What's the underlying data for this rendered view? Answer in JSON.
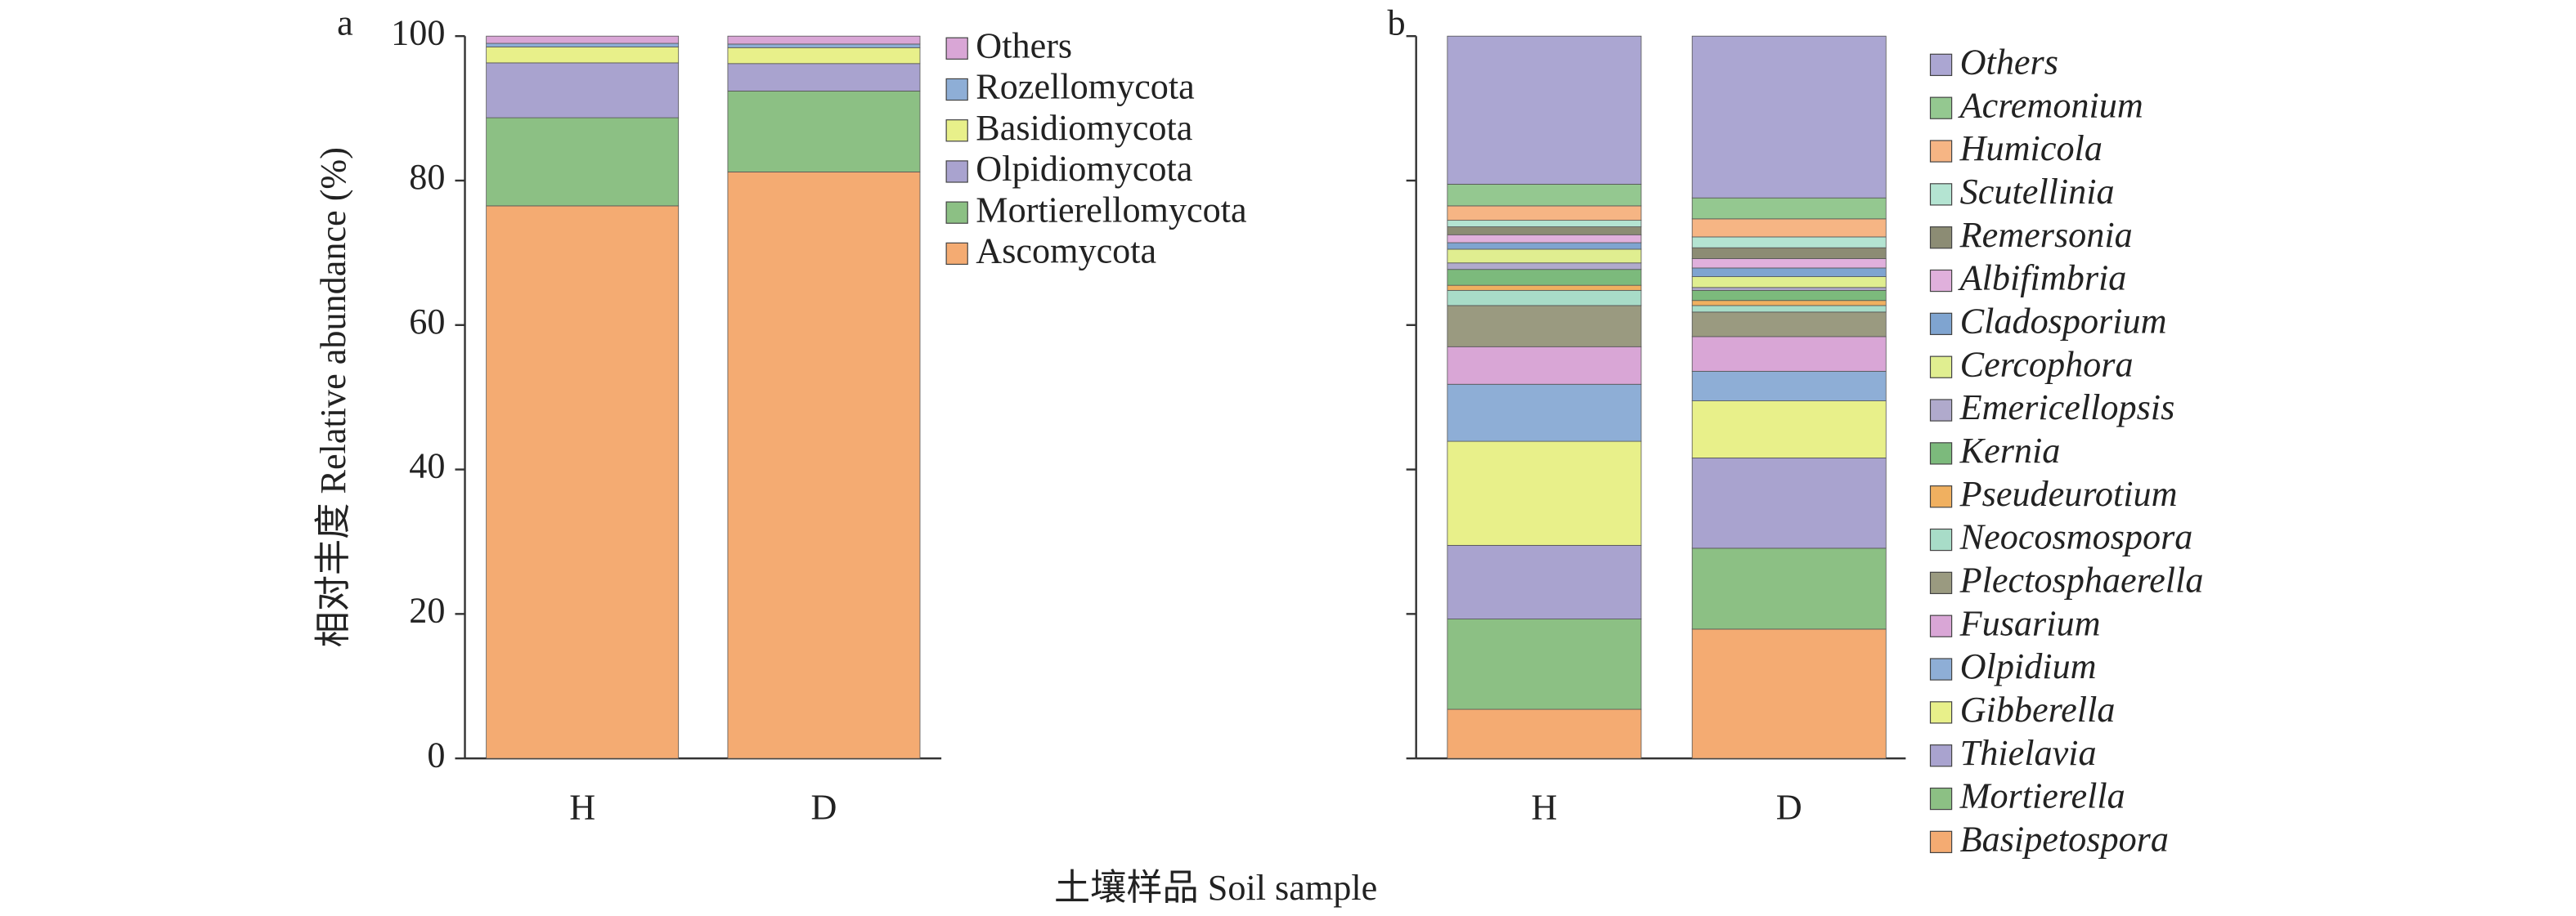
{
  "chart_data": [
    {
      "type": "bar",
      "stacked": true,
      "panel": "a",
      "ylabel": "相对丰度 Relative abundance (%)",
      "xlabel": "土壤样品 Soil sample",
      "categories": [
        "H",
        "D"
      ],
      "ylim": [
        0,
        100
      ],
      "yticks": [
        0,
        20,
        40,
        60,
        80,
        100
      ],
      "show_ytick_labels": true,
      "legend_italic": false,
      "series": [
        {
          "name": "Ascomycota",
          "color": "#f4ab72",
          "values": [
            76.5,
            81.2
          ]
        },
        {
          "name": "Mortierellomycota",
          "color": "#8cc084",
          "values": [
            12.2,
            11.2
          ]
        },
        {
          "name": "Olpidiomycota",
          "color": "#a9a3cf",
          "values": [
            7.6,
            3.8
          ]
        },
        {
          "name": "Basidiomycota",
          "color": "#e8f08a",
          "values": [
            2.2,
            2.2
          ]
        },
        {
          "name": "Rozellomycota",
          "color": "#8eaed6",
          "values": [
            0.5,
            0.5
          ]
        },
        {
          "name": "Others",
          "color": "#d9a6d6",
          "values": [
            1.0,
            1.1
          ]
        }
      ]
    },
    {
      "type": "bar",
      "stacked": true,
      "panel": "b",
      "categories": [
        "H",
        "D"
      ],
      "ylim": [
        0,
        100
      ],
      "yticks": [
        0,
        20,
        40,
        60,
        80,
        100
      ],
      "show_ytick_labels": false,
      "legend_italic": true,
      "series": [
        {
          "name": "Basipetospora",
          "color": "#f4ab72",
          "values": [
            6.8,
            17.9
          ]
        },
        {
          "name": "Mortierella",
          "color": "#8cc084",
          "values": [
            12.5,
            11.2
          ]
        },
        {
          "name": "Thielavia",
          "color": "#a9a3cf",
          "values": [
            10.2,
            12.5
          ]
        },
        {
          "name": "Gibberella",
          "color": "#e8f08a",
          "values": [
            14.4,
            7.9
          ]
        },
        {
          "name": "Olpidium",
          "color": "#8eaed6",
          "values": [
            7.9,
            4.1
          ]
        },
        {
          "name": "Fusarium",
          "color": "#d9a6d6",
          "values": [
            5.2,
            4.8
          ]
        },
        {
          "name": "Plectosphaerella",
          "color": "#9a9a80",
          "values": [
            5.7,
            3.4
          ]
        },
        {
          "name": "Neocosmospora",
          "color": "#a8dcc8",
          "values": [
            2.1,
            0.9
          ]
        },
        {
          "name": "Pseudeurotium",
          "color": "#f0b060",
          "values": [
            0.7,
            0.7
          ]
        },
        {
          "name": "Kernia",
          "color": "#7cba7c",
          "values": [
            2.2,
            1.4
          ]
        },
        {
          "name": "Emericellopsis",
          "color": "#b0aacc",
          "values": [
            0.9,
            0.4
          ]
        },
        {
          "name": "Cercophora",
          "color": "#e0ee90",
          "values": [
            1.9,
            1.5
          ]
        },
        {
          "name": "Cladosporium",
          "color": "#7fa4d0",
          "values": [
            0.9,
            1.2
          ]
        },
        {
          "name": "Albifimbria",
          "color": "#e0b0dc",
          "values": [
            1.1,
            1.3
          ]
        },
        {
          "name": "Remersonia",
          "color": "#8c8c74",
          "values": [
            1.1,
            1.5
          ]
        },
        {
          "name": "Scutellinia",
          "color": "#b4e4d2",
          "values": [
            0.9,
            1.5
          ]
        },
        {
          "name": "Humicola",
          "color": "#f6b584",
          "values": [
            2.0,
            2.5
          ]
        },
        {
          "name": "Acremonium",
          "color": "#94c890",
          "values": [
            3.0,
            2.9
          ]
        },
        {
          "name": "Others",
          "color": "#aba6d2",
          "values": [
            20.5,
            22.4
          ]
        }
      ]
    }
  ]
}
